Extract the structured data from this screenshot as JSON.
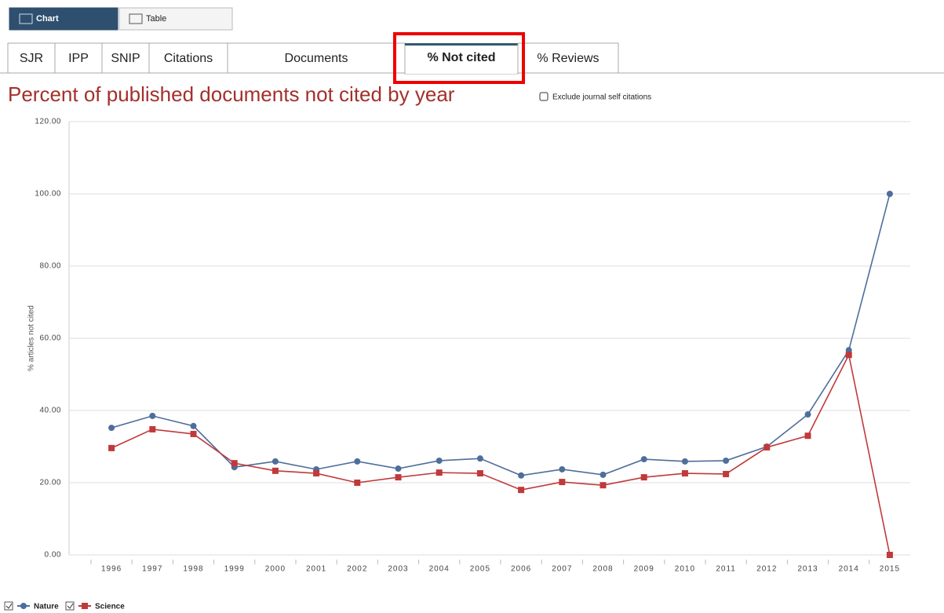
{
  "view_buttons": [
    "Chart",
    "Table"
  ],
  "tabs": [
    "SJR",
    "IPP",
    "SNIP",
    "Citations",
    "Documents",
    "% Not cited",
    "% Reviews"
  ],
  "active_tab": 5,
  "checkbox_label": "Exclude journal self citations",
  "chart_data": {
    "type": "line",
    "title": "Percent of published documents not cited by year",
    "y_label": "% articles not cited",
    "categories": [
      "1996",
      "1997",
      "1998",
      "1999",
      "2000",
      "2001",
      "2002",
      "2003",
      "2004",
      "2005",
      "2006",
      "2007",
      "2008",
      "2009",
      "2010",
      "2011",
      "2012",
      "2013",
      "2014",
      "2015"
    ],
    "series": [
      {
        "name": "Nature",
        "color": "#4e6e9b",
        "marker": "circle",
        "values": [
          35.2,
          38.5,
          35.7,
          24.3,
          25.9,
          23.7,
          25.9,
          23.9,
          26.1,
          26.7,
          22.0,
          23.7,
          22.2,
          26.5,
          25.9,
          26.1,
          30.0,
          38.9,
          56.7,
          100
        ]
      },
      {
        "name": "Science",
        "color": "#c0393b",
        "marker": "square",
        "values": [
          29.6,
          34.8,
          33.5,
          25.4,
          23.3,
          22.6,
          20.0,
          21.5,
          22.8,
          22.6,
          18.0,
          20.2,
          19.3,
          21.5,
          22.6,
          22.4,
          29.8,
          33.0,
          55.4,
          0
        ]
      }
    ],
    "ylim": [
      0,
      120
    ],
    "yticks": [
      {
        "value": 0,
        "label": "0.00"
      },
      {
        "value": 20,
        "label": "20.00"
      },
      {
        "value": 40,
        "label": "40.00"
      },
      {
        "value": 60,
        "label": "60.00"
      },
      {
        "value": 80,
        "label": "80.00"
      },
      {
        "value": 100,
        "label": "100.00"
      },
      {
        "value": 120,
        "label": "120.00"
      }
    ],
    "grid": true
  }
}
